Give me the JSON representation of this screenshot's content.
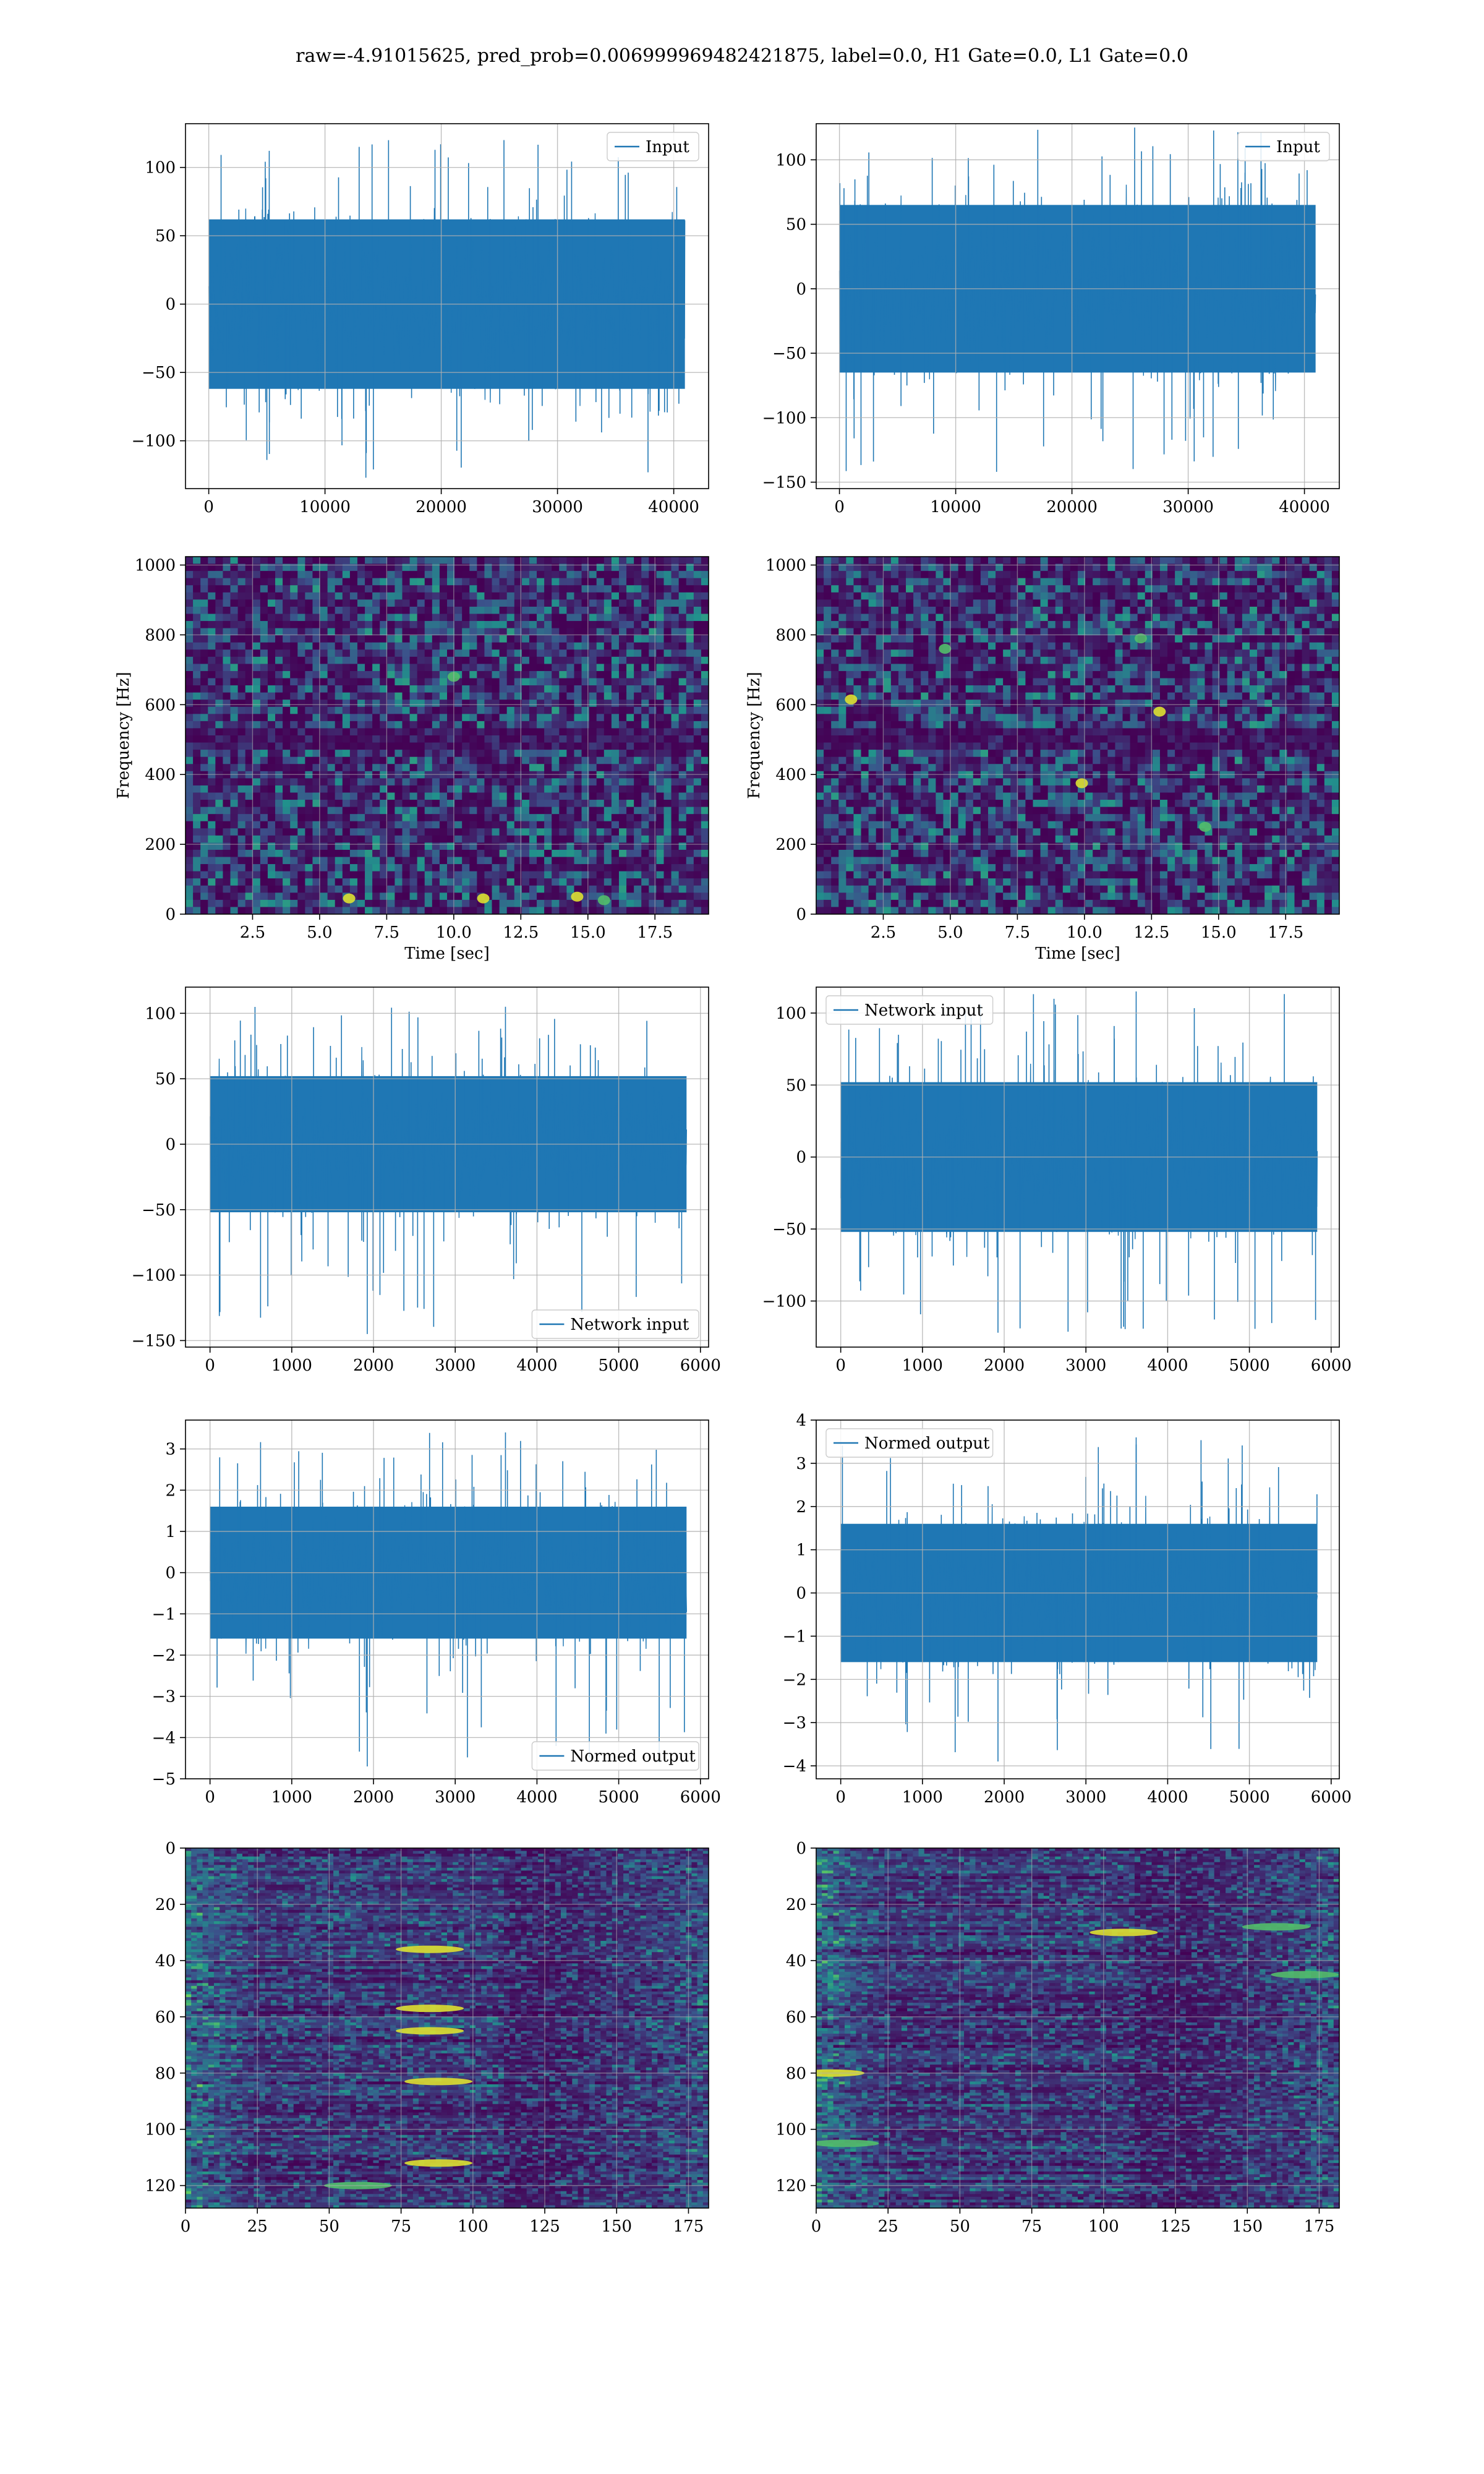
{
  "figure": {
    "suptitle": "raw=-4.91015625, pred_prob=0.006999969482421875, label=0.0, H1 Gate=0.0, L1 Gate=0.0"
  },
  "colors": {
    "line": "#1f77b4",
    "grid": "#b0b0b0",
    "axes": "#000000",
    "viridis": [
      "#440154",
      "#3b528b",
      "#21918c",
      "#5ec962",
      "#fde725"
    ]
  },
  "chart_data": [
    {
      "id": "h1-input",
      "type": "line",
      "legend": {
        "label": "Input",
        "loc": "upper right"
      },
      "xlim": [
        -2000,
        43000
      ],
      "ylim": [
        -135,
        132
      ],
      "xticks": [
        0,
        10000,
        20000,
        30000,
        40000
      ],
      "yticks": [
        -100,
        -50,
        0,
        50,
        100
      ],
      "n_points": 40960,
      "amplitude": {
        "p_max": 120,
        "p_min": -127,
        "core": 62
      },
      "xlabel": "",
      "ylabel": ""
    },
    {
      "id": "l1-input",
      "type": "line",
      "legend": {
        "label": "Input",
        "loc": "upper right"
      },
      "xlim": [
        -2000,
        43000
      ],
      "ylim": [
        -155,
        128
      ],
      "xticks": [
        0,
        10000,
        20000,
        30000,
        40000
      ],
      "yticks": [
        -150,
        -100,
        -50,
        0,
        50,
        100
      ],
      "n_points": 40960,
      "amplitude": {
        "p_max": 125,
        "p_min": -142,
        "core": 65
      },
      "xlabel": "",
      "ylabel": ""
    },
    {
      "id": "h1-spectrogram",
      "type": "heatmap",
      "xlim": [
        0,
        19.5
      ],
      "ylim": [
        0,
        1024
      ],
      "xticks": [
        2.5,
        5.0,
        7.5,
        10.0,
        12.5,
        15.0,
        17.5
      ],
      "yticks": [
        0,
        200,
        400,
        600,
        800,
        1000
      ],
      "xlabel": "Time [sec]",
      "ylabel": "Frequency [Hz]",
      "features": [
        {
          "t": 6.1,
          "f": 45,
          "level": "bright"
        },
        {
          "t": 11.1,
          "f": 45,
          "level": "bright"
        },
        {
          "t": 14.6,
          "f": 50,
          "level": "bright"
        },
        {
          "t": 15.6,
          "f": 40,
          "level": "medium"
        },
        {
          "t": 10.0,
          "f": 680,
          "level": "medium"
        }
      ]
    },
    {
      "id": "l1-spectrogram",
      "type": "heatmap",
      "xlim": [
        0,
        19.5
      ],
      "ylim": [
        0,
        1024
      ],
      "xticks": [
        2.5,
        5.0,
        7.5,
        10.0,
        12.5,
        15.0,
        17.5
      ],
      "yticks": [
        0,
        200,
        400,
        600,
        800,
        1000
      ],
      "xlabel": "Time [sec]",
      "ylabel": "Frequency [Hz]",
      "features": [
        {
          "t": 1.3,
          "f": 615,
          "level": "bright"
        },
        {
          "t": 12.8,
          "f": 580,
          "level": "bright"
        },
        {
          "t": 9.9,
          "f": 375,
          "level": "bright"
        },
        {
          "t": 14.5,
          "f": 250,
          "level": "medium"
        },
        {
          "t": 4.8,
          "f": 760,
          "level": "medium"
        },
        {
          "t": 12.1,
          "f": 790,
          "level": "medium"
        }
      ]
    },
    {
      "id": "h1-network-input",
      "type": "line",
      "legend": {
        "label": "Network input",
        "loc": "lower right"
      },
      "xlim": [
        -300,
        6100
      ],
      "ylim": [
        -155,
        120
      ],
      "xticks": [
        0,
        1000,
        2000,
        3000,
        4000,
        5000,
        6000
      ],
      "yticks": [
        -150,
        -100,
        -50,
        0,
        50,
        100
      ],
      "n_points": 5830,
      "amplitude": {
        "p_max": 105,
        "p_min": -145,
        "core": 52
      },
      "xlabel": "",
      "ylabel": ""
    },
    {
      "id": "l1-network-input",
      "type": "line",
      "legend": {
        "label": "Network input",
        "loc": "upper left"
      },
      "xlim": [
        -300,
        6100
      ],
      "ylim": [
        -132,
        118
      ],
      "xticks": [
        0,
        1000,
        2000,
        3000,
        4000,
        5000,
        6000
      ],
      "yticks": [
        -100,
        -50,
        0,
        50,
        100
      ],
      "n_points": 5830,
      "amplitude": {
        "p_max": 115,
        "p_min": -122,
        "core": 52
      },
      "xlabel": "",
      "ylabel": ""
    },
    {
      "id": "h1-normed-output",
      "type": "line",
      "legend": {
        "label": "Normed output",
        "loc": "lower right"
      },
      "xlim": [
        -300,
        6100
      ],
      "ylim": [
        -5.0,
        3.7
      ],
      "xticks": [
        0,
        1000,
        2000,
        3000,
        4000,
        5000,
        6000
      ],
      "yticks": [
        -5,
        -4,
        -3,
        -2,
        -1,
        0,
        1,
        2,
        3
      ],
      "n_points": 5830,
      "amplitude": {
        "p_max": 3.4,
        "p_min": -4.7,
        "core": 1.6
      },
      "xlabel": "",
      "ylabel": ""
    },
    {
      "id": "l1-normed-output",
      "type": "line",
      "legend": {
        "label": "Normed output",
        "loc": "upper left"
      },
      "xlim": [
        -300,
        6100
      ],
      "ylim": [
        -4.3,
        4.0
      ],
      "xticks": [
        0,
        1000,
        2000,
        3000,
        4000,
        5000,
        6000
      ],
      "yticks": [
        -4,
        -3,
        -2,
        -1,
        0,
        1,
        2,
        3,
        4
      ],
      "n_points": 5830,
      "amplitude": {
        "p_max": 3.6,
        "p_min": -3.9,
        "core": 1.6
      },
      "xlabel": "",
      "ylabel": ""
    },
    {
      "id": "h1-features",
      "type": "heatmap",
      "xlim": [
        0,
        182
      ],
      "ylim": [
        128,
        0
      ],
      "xticks": [
        0,
        25,
        50,
        75,
        100,
        125,
        150,
        175
      ],
      "yticks": [
        0,
        20,
        40,
        60,
        80,
        100,
        120
      ],
      "xlabel": "",
      "ylabel": "",
      "features": [
        {
          "x": 85,
          "y": 36,
          "level": "bright"
        },
        {
          "x": 85,
          "y": 57,
          "level": "bright"
        },
        {
          "x": 85,
          "y": 65,
          "level": "bright"
        },
        {
          "x": 88,
          "y": 83,
          "level": "bright"
        },
        {
          "x": 88,
          "y": 112,
          "level": "bright"
        },
        {
          "x": 60,
          "y": 120,
          "level": "medium"
        }
      ]
    },
    {
      "id": "l1-features",
      "type": "heatmap",
      "xlim": [
        0,
        182
      ],
      "ylim": [
        128,
        0
      ],
      "xticks": [
        0,
        25,
        50,
        75,
        100,
        125,
        150,
        175
      ],
      "yticks": [
        0,
        20,
        40,
        60,
        80,
        100,
        120
      ],
      "xlabel": "",
      "ylabel": "",
      "features": [
        {
          "x": 107,
          "y": 30,
          "level": "bright"
        },
        {
          "x": 5,
          "y": 80,
          "level": "bright"
        },
        {
          "x": 160,
          "y": 28,
          "level": "medium"
        },
        {
          "x": 170,
          "y": 45,
          "level": "medium"
        },
        {
          "x": 10,
          "y": 105,
          "level": "medium"
        }
      ]
    }
  ]
}
